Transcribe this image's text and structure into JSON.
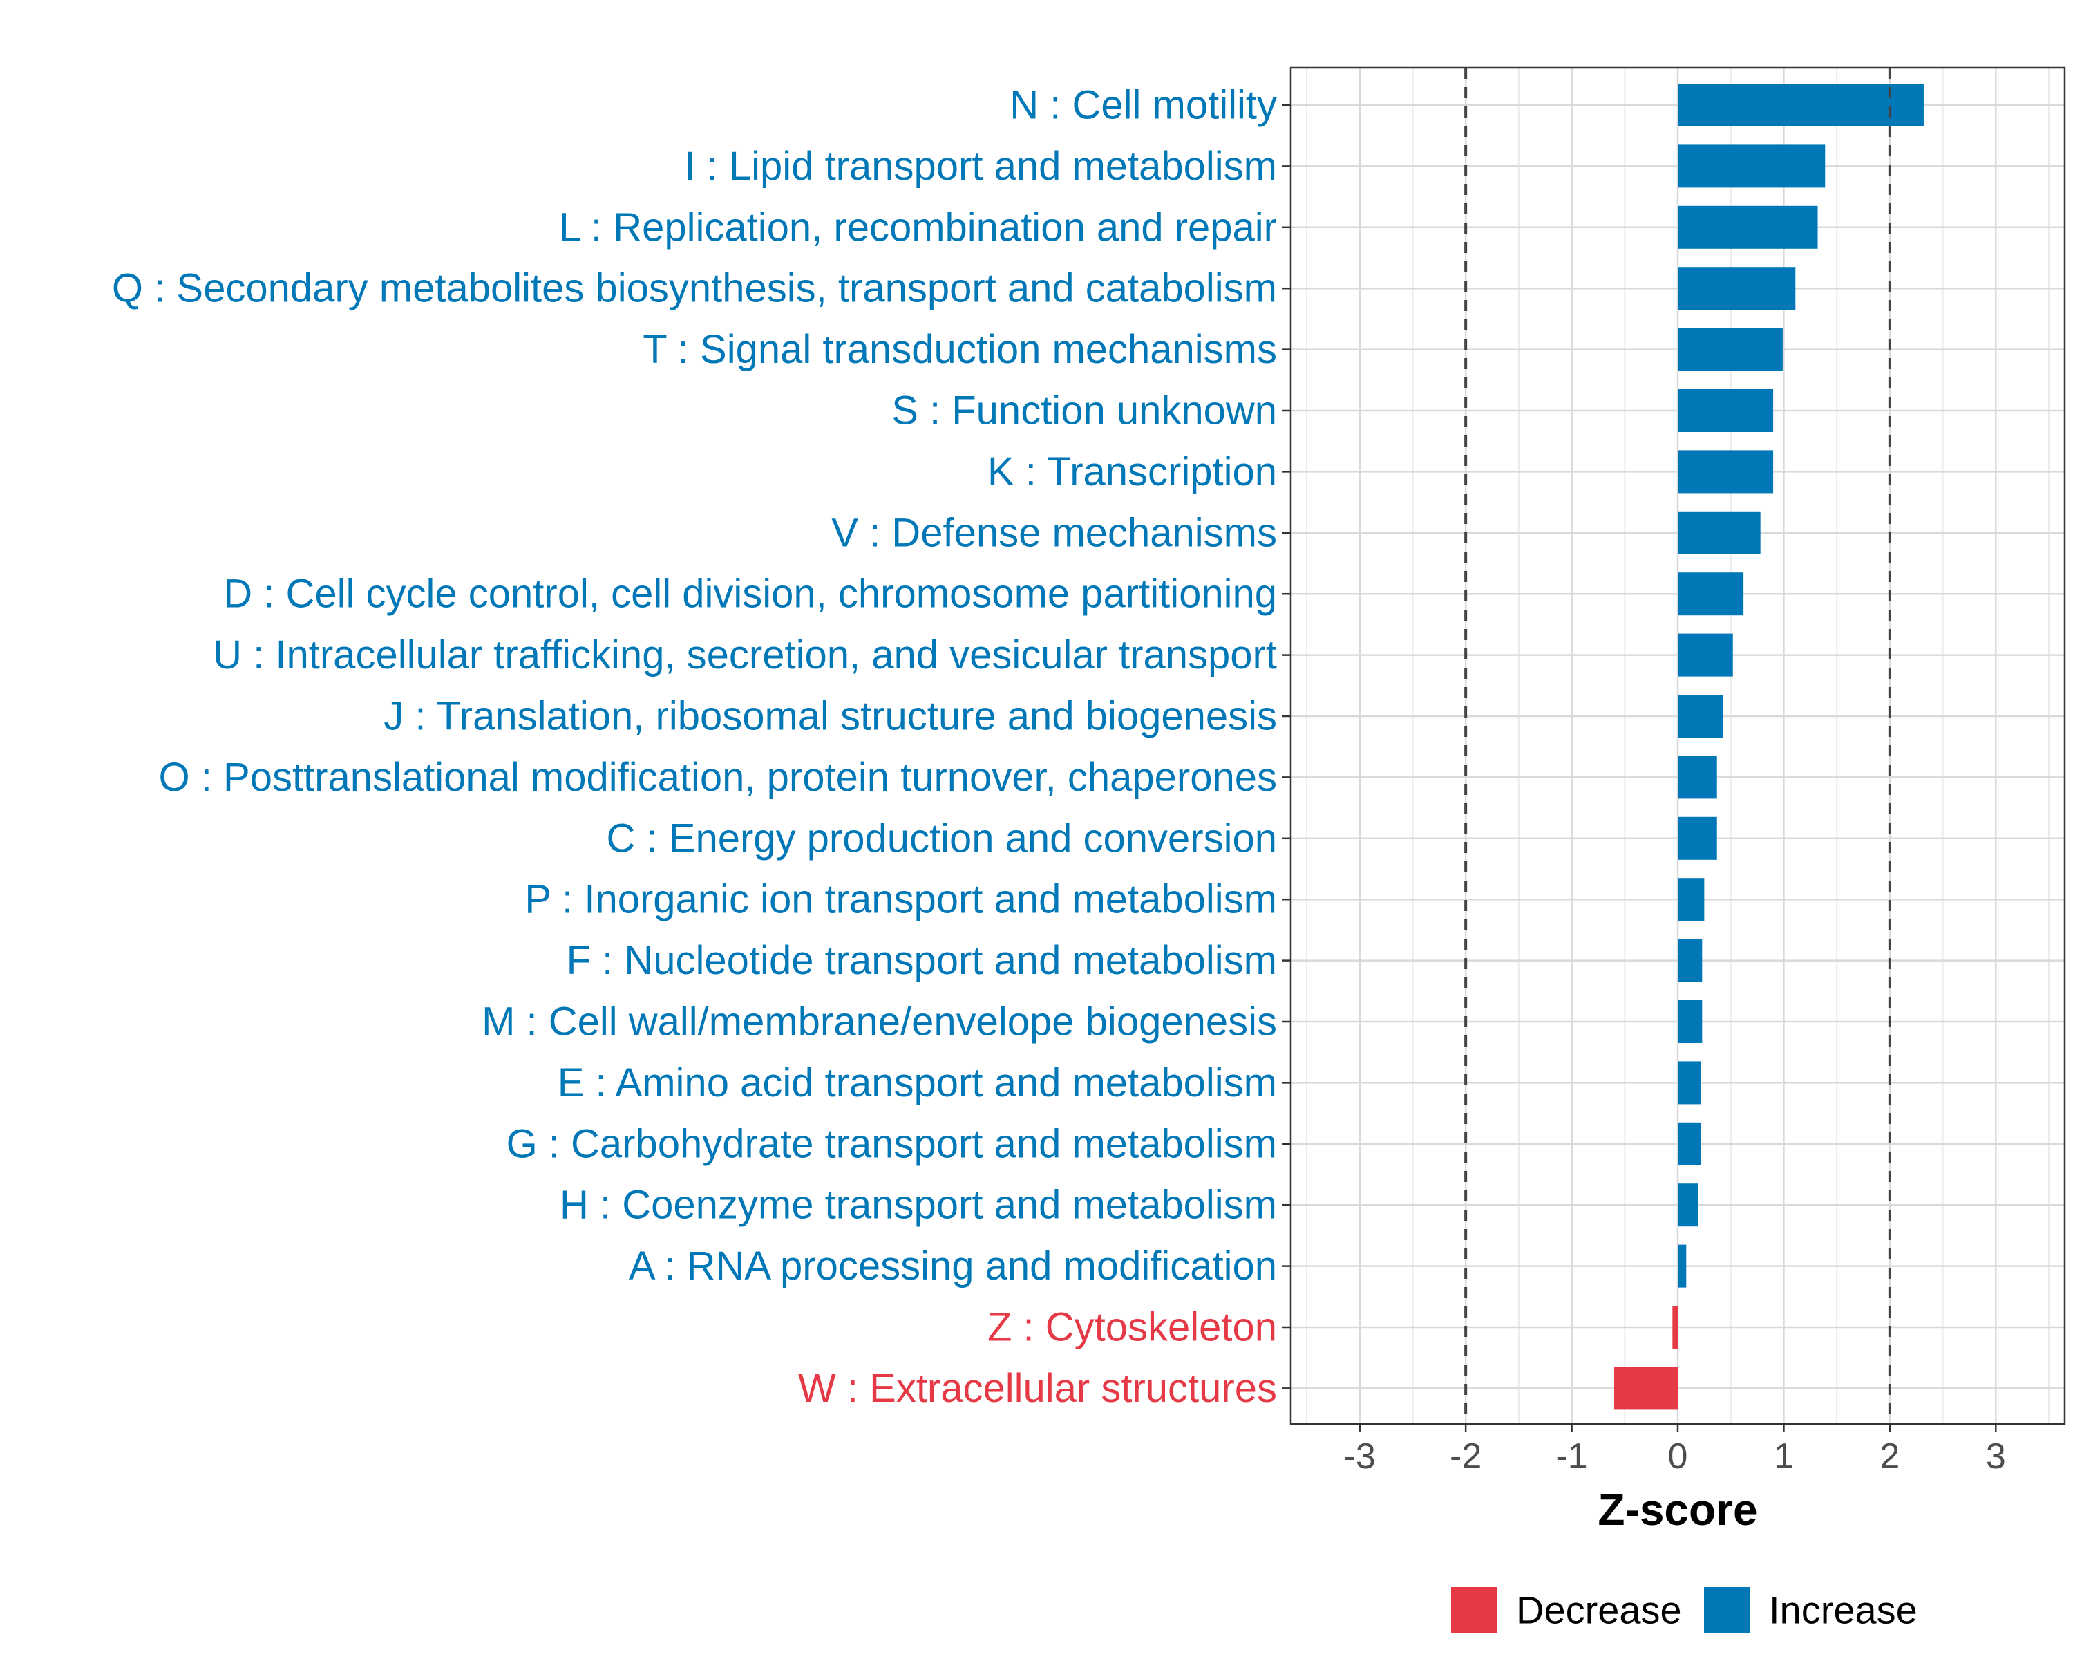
{
  "chart_data": {
    "type": "bar",
    "orientation": "horizontal",
    "title": "",
    "xlabel": "Z-score",
    "ylabel": "",
    "xlim": [
      -3.65,
      3.65
    ],
    "xticks": [
      -3,
      -2,
      -1,
      0,
      1,
      2,
      3
    ],
    "reference_lines": [
      -2,
      2
    ],
    "grid": true,
    "legend_position": "bottom",
    "colors": {
      "Decrease": "#e63946",
      "Increase": "#0077b6"
    },
    "categories": [
      "N : Cell motility",
      "I : Lipid transport and metabolism",
      "L : Replication, recombination and repair",
      "Q : Secondary metabolites biosynthesis, transport and catabolism",
      "T : Signal transduction mechanisms",
      "S : Function unknown",
      "K : Transcription",
      "V : Defense mechanisms",
      "D : Cell cycle control, cell division, chromosome partitioning",
      "U : Intracellular trafficking, secretion, and vesicular transport",
      "J : Translation, ribosomal structure and biogenesis",
      "O : Posttranslational modification, protein turnover, chaperones",
      "C : Energy production and conversion",
      "P : Inorganic ion transport and metabolism",
      "F : Nucleotide transport and metabolism",
      "M : Cell wall/membrane/envelope biogenesis",
      "E : Amino acid transport and metabolism",
      "G : Carbohydrate transport and metabolism",
      "H : Coenzyme transport and metabolism",
      "A : RNA processing and modification",
      "Z : Cytoskeleton",
      "W : Extracellular structures"
    ],
    "values": [
      2.32,
      1.39,
      1.32,
      1.11,
      0.99,
      0.9,
      0.9,
      0.78,
      0.62,
      0.52,
      0.43,
      0.37,
      0.37,
      0.25,
      0.23,
      0.23,
      0.22,
      0.22,
      0.19,
      0.08,
      -0.05,
      -0.6
    ],
    "groups": [
      "Increase",
      "Increase",
      "Increase",
      "Increase",
      "Increase",
      "Increase",
      "Increase",
      "Increase",
      "Increase",
      "Increase",
      "Increase",
      "Increase",
      "Increase",
      "Increase",
      "Increase",
      "Increase",
      "Increase",
      "Increase",
      "Increase",
      "Increase",
      "Decrease",
      "Decrease"
    ],
    "legend": [
      {
        "name": "Decrease",
        "color": "#e63946"
      },
      {
        "name": "Increase",
        "color": "#0077b6"
      }
    ]
  }
}
